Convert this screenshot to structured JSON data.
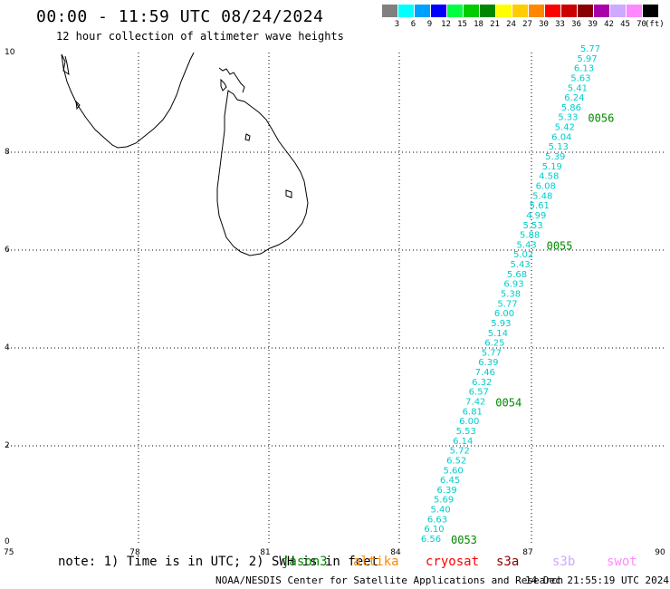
{
  "header": {
    "title": "00:00 - 11:59 UTC 08/24/2024",
    "subtitle": "12 hour collection of altimeter wave heights"
  },
  "legend": {
    "unit": "(ft)",
    "bins": [
      {
        "label": "3",
        "color": "#808080"
      },
      {
        "label": "6",
        "color": "#00ffff"
      },
      {
        "label": "9",
        "color": "#00a0ff"
      },
      {
        "label": "12",
        "color": "#0000ff"
      },
      {
        "label": "15",
        "color": "#00ff40"
      },
      {
        "label": "18",
        "color": "#00cc00"
      },
      {
        "label": "21",
        "color": "#008800"
      },
      {
        "label": "24",
        "color": "#ffff00"
      },
      {
        "label": "27",
        "color": "#ffcc00"
      },
      {
        "label": "30",
        "color": "#ff8800"
      },
      {
        "label": "33",
        "color": "#ff0000"
      },
      {
        "label": "36",
        "color": "#cc0000"
      },
      {
        "label": "39",
        "color": "#880000"
      },
      {
        "label": "42",
        "color": "#aa00aa"
      },
      {
        "label": "45",
        "color": "#ccaaff"
      },
      {
        "label": "70",
        "color": "#ff88ff"
      },
      {
        "label": "",
        "color": "#000000"
      }
    ]
  },
  "axes": {
    "x_ticks": [
      "75",
      "78",
      "81",
      "84",
      "87",
      "90"
    ],
    "y_ticks": [
      "0",
      "2",
      "4",
      "6",
      "8",
      "10"
    ]
  },
  "track": {
    "color": "#00cccc",
    "heights": [
      "6.56",
      "6.10",
      "6.63",
      "5.40",
      "5.69",
      "6.39",
      "6.45",
      "5.60",
      "6.52",
      "5.72",
      "6.14",
      "5.53",
      "6.00",
      "6.81",
      "7.42",
      "6.57",
      "6.32",
      "7.46",
      "6.39",
      "5.77",
      "6.25",
      "5.14",
      "5.93",
      "6.00",
      "5.77",
      "5.38",
      "6.93",
      "5.68",
      "5.43",
      "5.02",
      "5.43",
      "5.88",
      "5.53",
      "4.99",
      "5.61",
      "5.48",
      "6.08",
      "4.58",
      "5.19",
      "5.39",
      "5.13",
      "6.04",
      "5.42",
      "5.33",
      "5.86",
      "6.24",
      "5.41",
      "5.63",
      "6.13",
      "5.97",
      "5.77"
    ],
    "time_labels": [
      {
        "label": "0053",
        "index": 0
      },
      {
        "label": "0054",
        "index": 14
      },
      {
        "label": "0055",
        "index": 30
      },
      {
        "label": "0056",
        "index": 43
      }
    ],
    "time_label_color": "#008800"
  },
  "footer": {
    "note": "note: 1) Time is in UTC; 2) SWH is in feet",
    "satellites": [
      {
        "name": "jason3",
        "color": "#008800"
      },
      {
        "name": "altika",
        "color": "#ff8800"
      },
      {
        "name": "cryosat",
        "color": "#ff0000"
      },
      {
        "name": "s3a",
        "color": "#880000"
      },
      {
        "name": "s3b",
        "color": "#ccaaff"
      },
      {
        "name": "swot",
        "color": "#ff88ff"
      }
    ],
    "credit": "NOAA/NESDIS Center for Satellite Applications and Research",
    "timestamp": "14 Dec 21:55:19 UTC 2024"
  }
}
